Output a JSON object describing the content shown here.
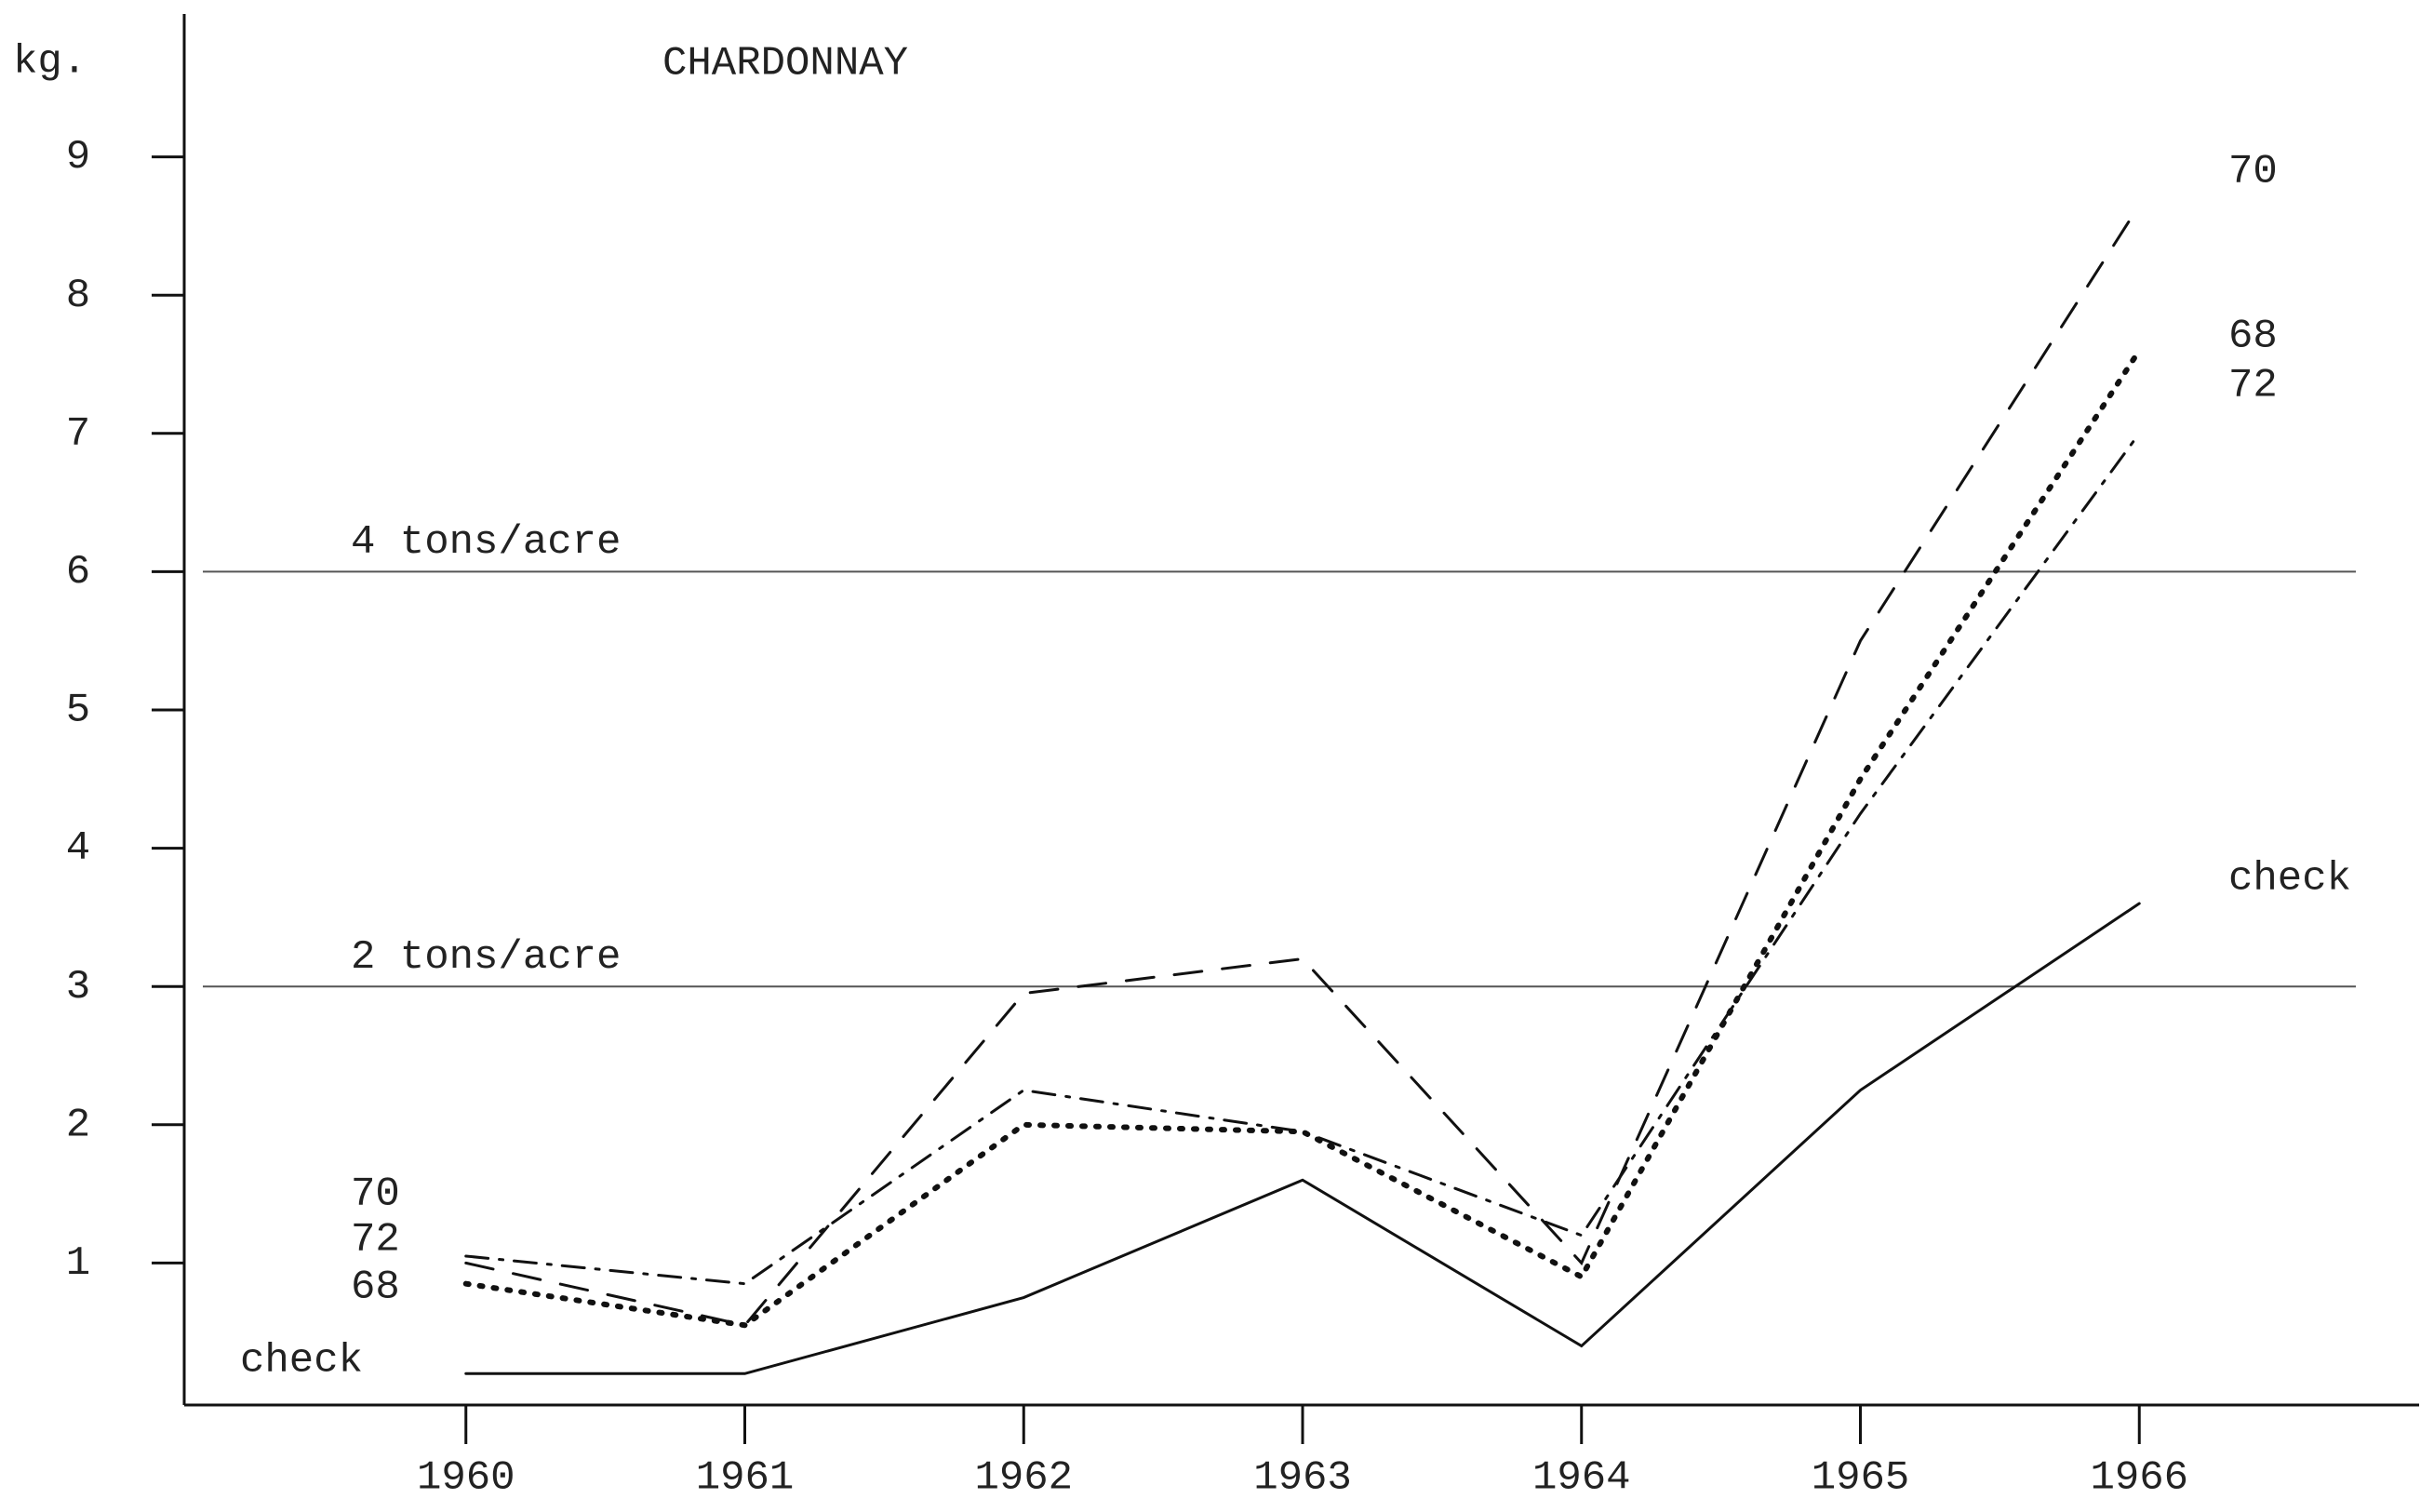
{
  "chart_data": {
    "type": "line",
    "title": "CHARDONNAY",
    "ylabel": "kg.",
    "x": [
      1960,
      1961,
      1962,
      1963,
      1964,
      1965,
      1966
    ],
    "xlim": [
      1959,
      1967
    ],
    "xticks": [
      1960,
      1961,
      1962,
      1963,
      1964,
      1965,
      1966
    ],
    "ylim": [
      0,
      10
    ],
    "yticks": [
      1,
      2,
      3,
      4,
      5,
      6,
      7,
      8,
      9
    ],
    "reference_lines": [
      {
        "value": 6,
        "label": "4 tons/acre"
      },
      {
        "value": 3,
        "label": "2 tons/acre"
      }
    ],
    "series": [
      {
        "name": "70",
        "color": "#111111",
        "style": "dashed",
        "values": [
          1.0,
          0.55,
          2.95,
          3.2,
          1.0,
          5.5,
          8.65
        ]
      },
      {
        "name": "68",
        "color": "#111111",
        "style": "dotted",
        "values": [
          0.85,
          0.55,
          2.0,
          1.95,
          0.9,
          4.5,
          7.6
        ]
      },
      {
        "name": "72",
        "color": "#111111",
        "style": "dashdot",
        "values": [
          1.05,
          0.85,
          2.25,
          1.95,
          1.2,
          4.25,
          7.0
        ]
      },
      {
        "name": "check",
        "color": "#111111",
        "style": "solid",
        "values": [
          0.2,
          0.2,
          0.75,
          1.6,
          0.4,
          2.25,
          3.6
        ]
      }
    ]
  }
}
